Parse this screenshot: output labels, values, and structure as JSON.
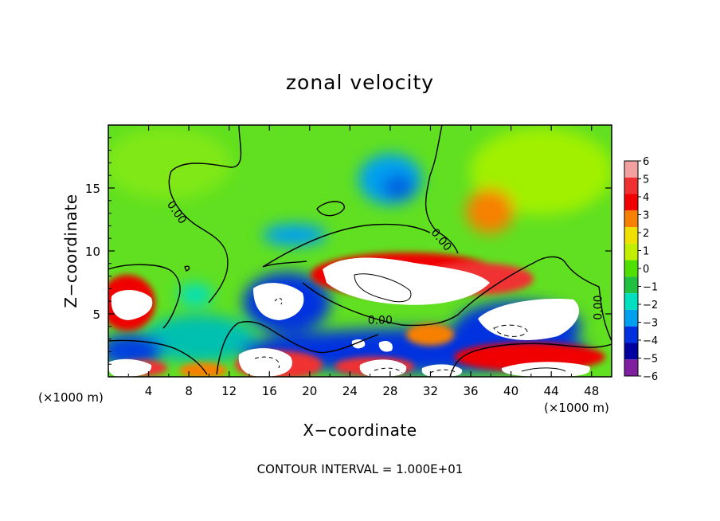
{
  "chart_data": {
    "type": "heatmap",
    "title": "zonal velocity",
    "xlabel": "X−coordinate",
    "ylabel": "Z−coordinate",
    "x_unit_left": "(×1000 m)",
    "x_unit_right": "(×1000 m)",
    "xlim": [
      0,
      50
    ],
    "ylim": [
      0,
      20
    ],
    "x_ticks": [
      4,
      8,
      12,
      16,
      20,
      24,
      28,
      32,
      36,
      40,
      44,
      48
    ],
    "x_tick_labels": [
      "4",
      "8",
      "12",
      "16",
      "20",
      "24",
      "28",
      "32",
      "36",
      "40",
      "44",
      "48"
    ],
    "y_ticks": [
      5,
      10,
      15
    ],
    "y_tick_labels": [
      "5",
      "10",
      "15"
    ],
    "colorbar": {
      "levels": [
        6,
        5,
        4,
        3,
        2,
        1,
        0,
        -1,
        -2,
        -3,
        -4,
        -5,
        -6
      ],
      "labels": [
        "6",
        "5",
        "4",
        "3",
        "2",
        "1",
        "0",
        "−1",
        "−2",
        "−3",
        "−4",
        "−5",
        "−6"
      ],
      "colors": [
        "#f2a0a0",
        "#f03030",
        "#f00000",
        "#f88000",
        "#f0e000",
        "#c0f000",
        "#50e000",
        "#20c040",
        "#00e0c0",
        "#00a0f0",
        "#0030e0",
        "#0000a0",
        "#8020a0"
      ]
    },
    "contour_labels": [
      {
        "text": "0.00",
        "x": 6.5,
        "y": 12.9,
        "rotation": 55
      },
      {
        "text": "0.00",
        "x": 32.8,
        "y": 10.7,
        "rotation": 50
      },
      {
        "text": "0.00",
        "x": 27.0,
        "y": 4.2,
        "rotation": 0
      },
      {
        "text": "0.00",
        "x": 49.0,
        "y": 5.5,
        "rotation": -90
      }
    ],
    "footnote": "CONTOUR INTERVAL = 1.000E+01"
  }
}
